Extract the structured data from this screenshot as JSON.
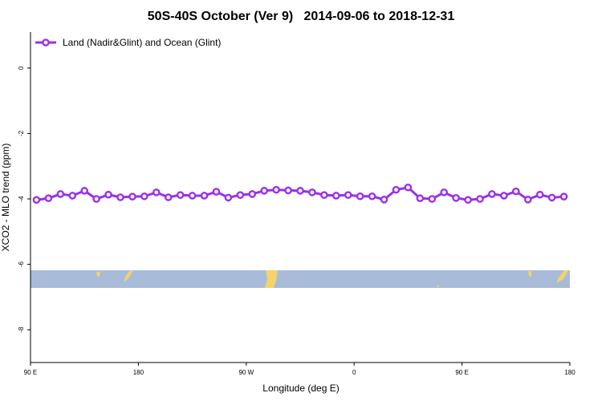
{
  "chart_data": {
    "type": "line",
    "title": "50S-40S October (Ver 9)   2014-09-06 to 2018-12-31",
    "x_label": "Longitude (deg E)",
    "y_label": "XCO2 - MLO trend (ppm)",
    "x": [
      95,
      105,
      115,
      125,
      135,
      145,
      155,
      165,
      175,
      185,
      195,
      205,
      215,
      225,
      235,
      245,
      255,
      265,
      275,
      285,
      295,
      305,
      315,
      325,
      335,
      345,
      355,
      365,
      375,
      385,
      395,
      405,
      415,
      425,
      435,
      445,
      455,
      465,
      475,
      485,
      495,
      505,
      515,
      525,
      535
    ],
    "series": [
      {
        "name": "Land (Nadir&Glint) and Ocean (Glint)",
        "color": "#9b30e6",
        "values": [
          -4.03,
          -3.98,
          -3.85,
          -3.9,
          -3.75,
          -4.0,
          -3.87,
          -3.95,
          -3.93,
          -3.92,
          -3.8,
          -3.95,
          -3.88,
          -3.9,
          -3.9,
          -3.78,
          -3.96,
          -3.88,
          -3.85,
          -3.75,
          -3.72,
          -3.74,
          -3.75,
          -3.8,
          -3.88,
          -3.9,
          -3.88,
          -3.92,
          -3.92,
          -4.02,
          -3.72,
          -3.65,
          -3.98,
          -4.0,
          -3.8,
          -3.97,
          -4.03,
          -4.0,
          -3.85,
          -3.9,
          -3.77,
          -4.02,
          -3.87,
          -3.96,
          -3.93
        ]
      }
    ],
    "xlim": [
      90,
      540
    ],
    "xticks": [
      {
        "value": 90,
        "label": "90 E"
      },
      180,
      {
        "value": 270,
        "label": "90 W"
      },
      {
        "value": 360,
        "label": "0"
      },
      {
        "value": 450,
        "label": "90 E"
      },
      {
        "value": 540,
        "label": "180"
      }
    ],
    "ylim": [
      -9,
      1.1
    ],
    "yticks": [
      0,
      -2,
      -4,
      -6,
      -8
    ],
    "legend": "top-left"
  }
}
